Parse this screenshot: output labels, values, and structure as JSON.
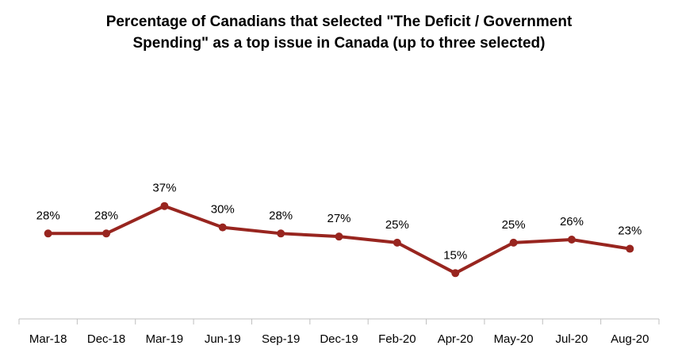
{
  "chart_data": {
    "type": "line",
    "title_lines": [
      "Percentage of Canadians that selected \"The Deficit / Government",
      "Spending\" as a top issue in Canada (up to three selected)"
    ],
    "categories": [
      "Mar-18",
      "Dec-18",
      "Mar-19",
      "Jun-19",
      "Sep-19",
      "Dec-19",
      "Feb-20",
      "Apr-20",
      "May-20",
      "Jul-20",
      "Aug-20"
    ],
    "series": [
      {
        "values": [
          28,
          28,
          37,
          30,
          28,
          27,
          25,
          15,
          25,
          26,
          23
        ],
        "labels": [
          "28%",
          "28%",
          "37%",
          "30%",
          "28%",
          "27%",
          "25%",
          "15%",
          "25%",
          "26%",
          "23%"
        ],
        "color": "#98251f"
      }
    ],
    "xlabel": "",
    "ylabel": "",
    "ylim": [
      0,
      100
    ],
    "grid": false,
    "legend": "none"
  }
}
